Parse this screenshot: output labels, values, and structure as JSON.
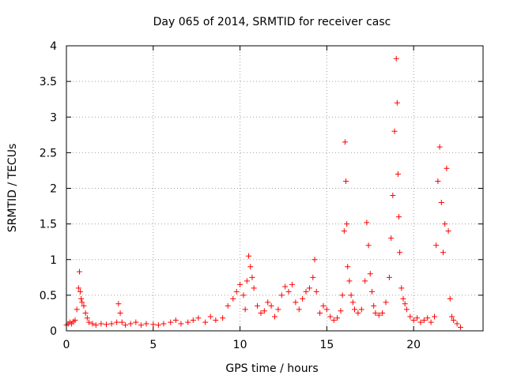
{
  "chart_data": {
    "type": "scatter",
    "title": "Day 065 of 2014, SRMTID for receiver casc",
    "xlabel": "GPS time / hours",
    "ylabel": "SRMTID / TECUs",
    "xlim": [
      0,
      24
    ],
    "ylim": [
      0,
      4
    ],
    "xticks": [
      0,
      5,
      10,
      15,
      20
    ],
    "xtick_labels": [
      "0",
      "5",
      "10",
      "15",
      "20"
    ],
    "yticks": [
      0,
      0.5,
      1,
      1.5,
      2,
      2.5,
      3,
      3.5,
      4
    ],
    "ytick_labels": [
      "0",
      "0.5",
      "1",
      "1.5",
      "2",
      "2.5",
      "3",
      "3.5",
      "4"
    ],
    "grid": true,
    "legend": "none",
    "marker": "plus",
    "color": "#ff0000",
    "series": [
      {
        "name": "SRMTID",
        "x": [
          0.0,
          0.1,
          0.2,
          0.3,
          0.4,
          0.5,
          0.6,
          0.7,
          0.75,
          0.8,
          0.85,
          0.9,
          1.0,
          1.1,
          1.2,
          1.3,
          1.5,
          1.7,
          2.0,
          2.3,
          2.6,
          2.9,
          3.0,
          3.1,
          3.2,
          3.4,
          3.7,
          4.0,
          4.3,
          4.6,
          5.0,
          5.3,
          5.6,
          6.0,
          6.3,
          6.6,
          7.0,
          7.3,
          7.6,
          8.0,
          8.3,
          8.6,
          9.0,
          9.3,
          9.6,
          9.8,
          10.0,
          10.2,
          10.3,
          10.4,
          10.5,
          10.6,
          10.7,
          10.8,
          11.0,
          11.2,
          11.4,
          11.6,
          11.8,
          12.0,
          12.2,
          12.4,
          12.6,
          12.8,
          13.0,
          13.2,
          13.4,
          13.6,
          13.8,
          14.0,
          14.2,
          14.3,
          14.4,
          14.6,
          14.8,
          15.0,
          15.2,
          15.4,
          15.6,
          15.8,
          15.9,
          16.0,
          16.05,
          16.1,
          16.15,
          16.2,
          16.3,
          16.4,
          16.5,
          16.6,
          16.8,
          17.0,
          17.2,
          17.3,
          17.4,
          17.5,
          17.6,
          17.7,
          17.8,
          18.0,
          18.2,
          18.4,
          18.6,
          18.7,
          18.8,
          18.9,
          19.0,
          19.05,
          19.1,
          19.15,
          19.2,
          19.3,
          19.4,
          19.5,
          19.6,
          19.8,
          20.0,
          20.2,
          20.4,
          20.6,
          20.8,
          21.0,
          21.2,
          21.3,
          21.4,
          21.5,
          21.6,
          21.7,
          21.8,
          21.9,
          22.0,
          22.1,
          22.2,
          22.3,
          22.5,
          22.7
        ],
        "y": [
          0.08,
          0.1,
          0.12,
          0.1,
          0.13,
          0.15,
          0.3,
          0.6,
          0.83,
          0.55,
          0.45,
          0.4,
          0.35,
          0.25,
          0.18,
          0.12,
          0.1,
          0.08,
          0.1,
          0.09,
          0.1,
          0.12,
          0.38,
          0.25,
          0.12,
          0.08,
          0.1,
          0.12,
          0.08,
          0.1,
          0.09,
          0.08,
          0.1,
          0.12,
          0.15,
          0.1,
          0.12,
          0.15,
          0.18,
          0.12,
          0.2,
          0.15,
          0.18,
          0.35,
          0.45,
          0.55,
          0.65,
          0.5,
          0.3,
          0.7,
          1.05,
          0.9,
          0.75,
          0.6,
          0.35,
          0.25,
          0.28,
          0.4,
          0.35,
          0.2,
          0.3,
          0.5,
          0.62,
          0.55,
          0.65,
          0.4,
          0.3,
          0.45,
          0.55,
          0.6,
          0.75,
          1.0,
          0.55,
          0.25,
          0.35,
          0.3,
          0.2,
          0.15,
          0.18,
          0.28,
          0.5,
          1.4,
          2.65,
          2.1,
          1.5,
          0.9,
          0.7,
          0.5,
          0.4,
          0.3,
          0.25,
          0.3,
          0.7,
          1.52,
          1.2,
          0.8,
          0.55,
          0.35,
          0.25,
          0.22,
          0.25,
          0.4,
          0.75,
          1.3,
          1.9,
          2.8,
          3.82,
          3.2,
          2.2,
          1.6,
          1.1,
          0.6,
          0.45,
          0.38,
          0.3,
          0.2,
          0.15,
          0.18,
          0.12,
          0.15,
          0.18,
          0.12,
          0.2,
          1.2,
          2.1,
          2.58,
          1.8,
          1.1,
          1.5,
          2.28,
          1.4,
          0.45,
          0.2,
          0.15,
          0.1,
          0.05
        ]
      }
    ]
  }
}
